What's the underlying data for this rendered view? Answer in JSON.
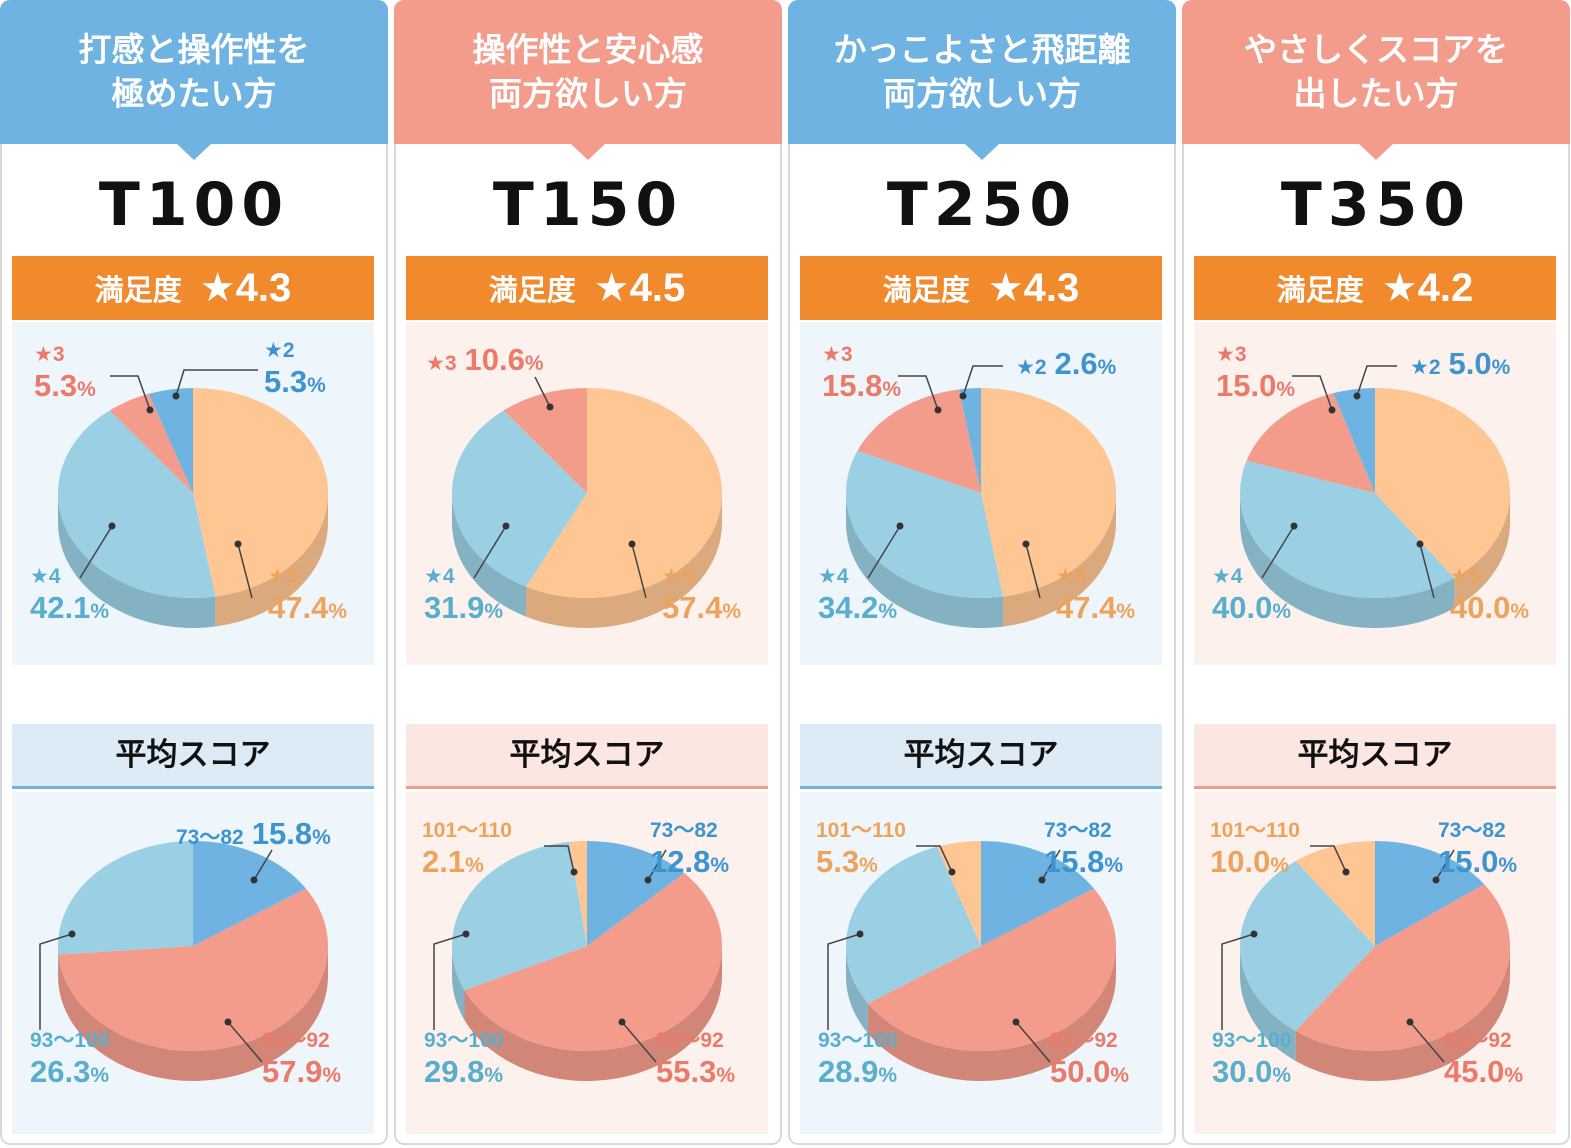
{
  "score_title": "平均スコア",
  "satisfaction_label": "満足度",
  "colors": {
    "blue_header": "#6fb3e2",
    "pink_header": "#f39c8c",
    "orange": "#f08a2c",
    "s5": "#fdc693",
    "s4": "#9bcfe3",
    "s3": "#f39c8c",
    "s2": "#6fb3e2",
    "r73": "#6fb3e2",
    "r83": "#f39c8c",
    "r93": "#9bcfe3",
    "r101": "#fdc693"
  },
  "columns": [
    {
      "header_lines": [
        "打感と操作性を",
        "極めたい方"
      ],
      "theme": "blue",
      "model": "T100",
      "satisfaction": "★4.3",
      "rating_labels": {
        "s2": [
          "★2",
          "5.3"
        ],
        "s3": [
          "★3",
          "5.3"
        ],
        "s4": [
          "★4",
          "42.1"
        ],
        "s5": [
          "★5",
          "47.4"
        ]
      },
      "score_labels": {
        "r73": [
          "73～82",
          "15.8"
        ],
        "r83": [
          "83～92",
          "57.9"
        ],
        "r93": [
          "93～100",
          "26.3"
        ]
      }
    },
    {
      "header_lines": [
        "操作性と安心感",
        "両方欲しい方"
      ],
      "theme": "pink",
      "model": "T150",
      "satisfaction": "★4.5",
      "rating_labels": {
        "s3": [
          "★3",
          "10.6"
        ],
        "s4": [
          "★4",
          "31.9"
        ],
        "s5": [
          "★5",
          "57.4"
        ]
      },
      "score_labels": {
        "r73": [
          "73～82",
          "12.8"
        ],
        "r83": [
          "83～92",
          "55.3"
        ],
        "r93": [
          "93～100",
          "29.8"
        ],
        "r101": [
          "101～110",
          "2.1"
        ]
      }
    },
    {
      "header_lines": [
        "かっこよさと飛距離",
        "両方欲しい方"
      ],
      "theme": "blue",
      "model": "T250",
      "satisfaction": "★4.3",
      "rating_labels": {
        "s2": [
          "★2",
          "2.6"
        ],
        "s3": [
          "★3",
          "15.8"
        ],
        "s4": [
          "★4",
          "34.2"
        ],
        "s5": [
          "★5",
          "47.4"
        ]
      },
      "score_labels": {
        "r73": [
          "73～82",
          "15.8"
        ],
        "r83": [
          "83～92",
          "50.0"
        ],
        "r93": [
          "93～100",
          "28.9"
        ],
        "r101": [
          "101～110",
          "5.3"
        ]
      }
    },
    {
      "header_lines": [
        "やさしくスコアを",
        "出したい方"
      ],
      "theme": "pink",
      "model": "T350",
      "satisfaction": "★4.2",
      "rating_labels": {
        "s2": [
          "★2",
          "5.0"
        ],
        "s3": [
          "★3",
          "15.0"
        ],
        "s4": [
          "★4",
          "40.0"
        ],
        "s5": [
          "★5",
          "40.0"
        ]
      },
      "score_labels": {
        "r73": [
          "73～82",
          "15.0"
        ],
        "r83": [
          "83～92",
          "45.0"
        ],
        "r93": [
          "93～100",
          "30.0"
        ],
        "r101": [
          "101～110",
          "10.0"
        ]
      }
    }
  ],
  "chart_data": [
    {
      "type": "pie",
      "model": "T100",
      "title": "満足度 ★4.3",
      "labels": [
        "★5",
        "★4",
        "★3",
        "★2"
      ],
      "values": [
        47.4,
        42.1,
        5.3,
        5.3
      ],
      "unit": "%"
    },
    {
      "type": "pie",
      "model": "T100",
      "title": "平均スコア",
      "labels": [
        "73～82",
        "83～92",
        "93～100"
      ],
      "values": [
        15.8,
        57.9,
        26.3
      ],
      "unit": "%"
    },
    {
      "type": "pie",
      "model": "T150",
      "title": "満足度 ★4.5",
      "labels": [
        "★5",
        "★4",
        "★3"
      ],
      "values": [
        57.4,
        31.9,
        10.6
      ],
      "unit": "%"
    },
    {
      "type": "pie",
      "model": "T150",
      "title": "平均スコア",
      "labels": [
        "73～82",
        "83～92",
        "93～100",
        "101～110"
      ],
      "values": [
        12.8,
        55.3,
        29.8,
        2.1
      ],
      "unit": "%"
    },
    {
      "type": "pie",
      "model": "T250",
      "title": "満足度 ★4.3",
      "labels": [
        "★5",
        "★4",
        "★3",
        "★2"
      ],
      "values": [
        47.4,
        34.2,
        15.8,
        2.6
      ],
      "unit": "%"
    },
    {
      "type": "pie",
      "model": "T250",
      "title": "平均スコア",
      "labels": [
        "73～82",
        "83～92",
        "93～100",
        "101～110"
      ],
      "values": [
        15.8,
        50.0,
        28.9,
        5.3
      ],
      "unit": "%"
    },
    {
      "type": "pie",
      "model": "T350",
      "title": "満足度 ★4.2",
      "labels": [
        "★5",
        "★4",
        "★3",
        "★2"
      ],
      "values": [
        40.0,
        40.0,
        15.0,
        5.0
      ],
      "unit": "%"
    },
    {
      "type": "pie",
      "model": "T350",
      "title": "平均スコア",
      "labels": [
        "73～82",
        "83～92",
        "93～100",
        "101～110"
      ],
      "values": [
        15.0,
        45.0,
        30.0,
        10.0
      ],
      "unit": "%"
    }
  ]
}
